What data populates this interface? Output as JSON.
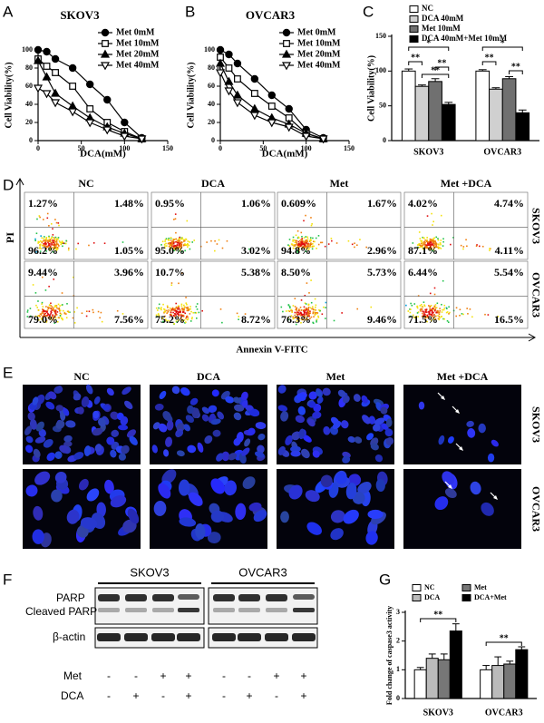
{
  "chart_data": [
    {
      "type": "line",
      "panel": "A",
      "title": "SKOV3",
      "x_label": "DCA(mM)",
      "y_label": "Cell Viability(%)",
      "x": [
        0,
        10,
        20,
        40,
        60,
        80,
        100,
        120
      ],
      "xlim": [
        0,
        150
      ],
      "xticks": [
        0,
        50,
        100,
        150
      ],
      "ylim": [
        0,
        100
      ],
      "yticks": [
        0,
        20,
        40,
        60,
        80,
        100
      ],
      "series": [
        {
          "name": "Met 0mM",
          "color": "#000000",
          "marker": "circle",
          "filled": true,
          "values": [
            100,
            98,
            90,
            80,
            62,
            45,
            20,
            3
          ]
        },
        {
          "name": "Met 10mM",
          "color": "#000000",
          "marker": "square",
          "filled": false,
          "values": [
            90,
            82,
            75,
            60,
            35,
            20,
            10,
            2
          ]
        },
        {
          "name": "Met 20mM",
          "color": "#000000",
          "marker": "triangle-up",
          "filled": true,
          "values": [
            88,
            70,
            52,
            38,
            25,
            15,
            8,
            2
          ]
        },
        {
          "name": "Met 40mM",
          "color": "#000000",
          "marker": "triangle-down",
          "filled": false,
          "values": [
            58,
            52,
            42,
            32,
            20,
            12,
            5,
            2
          ]
        }
      ]
    },
    {
      "type": "line",
      "panel": "B",
      "title": "OVCAR3",
      "x_label": "DCA(mM)",
      "y_label": "Cell Viability(%)",
      "x": [
        0,
        10,
        20,
        40,
        60,
        80,
        100,
        120
      ],
      "xlim": [
        0,
        150
      ],
      "xticks": [
        0,
        50,
        100,
        150
      ],
      "ylim": [
        0,
        100
      ],
      "yticks": [
        0,
        20,
        40,
        60,
        80,
        100
      ],
      "series": [
        {
          "name": "Met 0mM",
          "color": "#000000",
          "marker": "circle",
          "filled": true,
          "values": [
            100,
            95,
            85,
            68,
            50,
            35,
            12,
            3
          ]
        },
        {
          "name": "Met 10mM",
          "color": "#000000",
          "marker": "square",
          "filled": false,
          "values": [
            92,
            80,
            68,
            52,
            38,
            25,
            8,
            2
          ]
        },
        {
          "name": "Met 20mM",
          "color": "#000000",
          "marker": "triangle-up",
          "filled": true,
          "values": [
            85,
            65,
            50,
            35,
            25,
            18,
            8,
            2
          ]
        },
        {
          "name": "Met 40mM",
          "color": "#000000",
          "marker": "triangle-down",
          "filled": false,
          "values": [
            75,
            55,
            42,
            28,
            20,
            15,
            5,
            2
          ]
        }
      ]
    },
    {
      "type": "bar",
      "panel": "C",
      "y_label": "Cell Viability(%)",
      "categories": [
        "SKOV3",
        "OVCAR3"
      ],
      "ylim": [
        0,
        150
      ],
      "yticks": [
        0,
        50,
        100,
        150
      ],
      "series": [
        {
          "name": "NC",
          "color": "#ffffff",
          "values": [
            100,
            100
          ],
          "errors": [
            3,
            2
          ]
        },
        {
          "name": "DCA 40mM",
          "color": "#d0d0d0",
          "values": [
            78,
            74
          ],
          "errors": [
            2,
            2
          ]
        },
        {
          "name": "Met 10mM",
          "color": "#707070",
          "values": [
            85,
            89
          ],
          "errors": [
            4,
            3
          ]
        },
        {
          "name": "DCA 40mM+Met 10mM",
          "color": "#000000",
          "values": [
            52,
            40
          ],
          "errors": [
            3,
            4
          ]
        }
      ],
      "annotations": [
        "*",
        "**",
        "**",
        "**",
        "*",
        "**",
        "**"
      ]
    },
    {
      "type": "bar",
      "panel": "G",
      "y_label": "Fold change of caspase3 activity",
      "categories": [
        "SKOV3",
        "OVCAR3"
      ],
      "ylim": [
        0,
        3
      ],
      "yticks": [
        0,
        1,
        2,
        3
      ],
      "series": [
        {
          "name": "NC",
          "color": "#ffffff",
          "values": [
            1.0,
            1.0
          ],
          "errors": [
            0.08,
            0.15
          ]
        },
        {
          "name": "DCA",
          "color": "#bbbbbb",
          "values": [
            1.4,
            1.15
          ],
          "errors": [
            0.15,
            0.3
          ]
        },
        {
          "name": "Met",
          "color": "#777777",
          "values": [
            1.35,
            1.2
          ],
          "errors": [
            0.2,
            0.1
          ]
        },
        {
          "name": "DCA+Met",
          "color": "#000000",
          "values": [
            2.35,
            1.7
          ],
          "errors": [
            0.25,
            0.1
          ]
        }
      ],
      "annotations": [
        "**",
        "**"
      ]
    }
  ],
  "flow_cytometry": {
    "panel": "D",
    "columns": [
      "NC",
      "DCA",
      "Met",
      "Met +DCA"
    ],
    "rows": [
      "SKOV3",
      "OVCAR3"
    ],
    "y_label": "PI",
    "x_label": "Annexin V-FITC",
    "cells": [
      [
        [
          "1.27%",
          "1.48%",
          "96.2%",
          "1.05%"
        ],
        [
          "0.95%",
          "1.06%",
          "95.0%",
          "3.02%"
        ],
        [
          "0.609%",
          "1.67%",
          "94.8%",
          "2.96%"
        ],
        [
          "4.02%",
          "4.74%",
          "87.1%",
          "4.11%"
        ]
      ],
      [
        [
          "9.44%",
          "3.96%",
          "79.0%",
          "7.56%"
        ],
        [
          "10.7%",
          "5.38%",
          "75.2%",
          "8.72%"
        ],
        [
          "8.50%",
          "5.73%",
          "76.3%",
          "9.46%"
        ],
        [
          "6.44%",
          "5.54%",
          "71.5%",
          "16.5%"
        ]
      ]
    ]
  },
  "microscopy": {
    "panel": "E",
    "columns": [
      "NC",
      "DCA",
      "Met",
      "Met +DCA"
    ],
    "rows": [
      "SKOV3",
      "OVCAR3"
    ]
  },
  "western_blot": {
    "panel": "F",
    "cell_lines": [
      "SKOV3",
      "OVCAR3"
    ],
    "bands": [
      "PARP",
      "Cleaved PARP",
      "β-actin"
    ],
    "treatments": [
      {
        "name": "Met",
        "signs": [
          "-",
          "-",
          "+",
          "+",
          "-",
          "-",
          "+",
          "+"
        ]
      },
      {
        "name": "DCA",
        "signs": [
          "-",
          "+",
          "-",
          "+",
          "-",
          "+",
          "-",
          "+"
        ]
      }
    ]
  }
}
